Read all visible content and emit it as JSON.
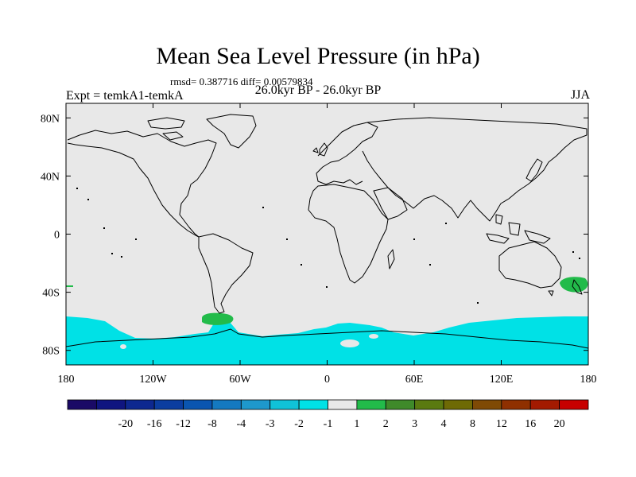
{
  "title": "Mean Sea Level Pressure (in hPa)",
  "stats": "rmsd= 0.387716 diff= 0.00579834",
  "experiment": "Expt = temkA1-temkA",
  "period": "26.0kyr BP - 26.0kyr BP",
  "season": "JJA",
  "chart_data": {
    "type": "heatmap",
    "projection": "equirectangular",
    "x_ticks": [
      "180",
      "120W",
      "60W",
      "0",
      "60E",
      "120E",
      "180"
    ],
    "x_tick_values": [
      -180,
      -120,
      -60,
      0,
      60,
      120,
      180
    ],
    "y_ticks": [
      "80N",
      "40N",
      "0",
      "40S",
      "80S"
    ],
    "y_tick_values": [
      80,
      40,
      0,
      -40,
      -80
    ],
    "xlim": [
      -180,
      180
    ],
    "ylim": [
      -90,
      90
    ],
    "colorbar": {
      "labels": [
        "-20",
        "-16",
        "-12",
        "-8",
        "-4",
        "-3",
        "-2",
        "-1",
        "1",
        "2",
        "3",
        "4",
        "8",
        "12",
        "16",
        "20"
      ],
      "colors": [
        "#1a0a66",
        "#0f1580",
        "#0d2890",
        "#0b3da0",
        "#0a55b0",
        "#1479c0",
        "#1e98cc",
        "#10c2d8",
        "#00e1e6",
        "#e8e8e8",
        "#22bb4a",
        "#3f8a2a",
        "#5a7a10",
        "#6e6a05",
        "#7f4a05",
        "#8f3000",
        "#a31a00",
        "#c70000"
      ]
    },
    "background_color": "#e8e8e8",
    "anomaly_regions": [
      {
        "name": "southern-ocean-band",
        "category": "-2 to -1",
        "color": "#00e1e6"
      },
      {
        "name": "south-america-tip",
        "category": "1 to 2",
        "color": "#22bb4a"
      },
      {
        "name": "new-zealand",
        "category": "1 to 2",
        "color": "#22bb4a"
      },
      {
        "name": "west-edge-40s",
        "category": "1 to 2",
        "color": "#22bb4a"
      }
    ]
  }
}
